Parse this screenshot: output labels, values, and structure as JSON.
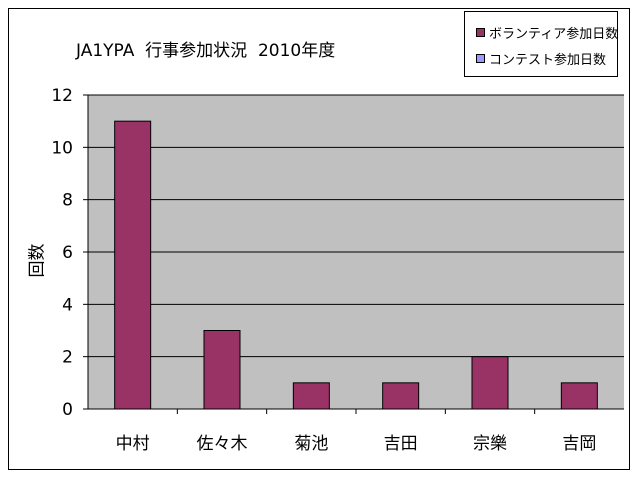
{
  "chart_data": {
    "type": "bar",
    "title": "JA1YPA  行事参加状況  2010年度",
    "xlabel": "",
    "ylabel": "回数",
    "categories": [
      "中村",
      "佐々木",
      "菊池",
      "吉田",
      "宗樂",
      "吉岡"
    ],
    "series": [
      {
        "name": "ボランティア参加日数",
        "values": [
          11,
          3,
          1,
          1,
          2,
          1
        ],
        "color": "#993366"
      },
      {
        "name": "コンテスト参加日数",
        "values": [
          0,
          0,
          0,
          0,
          0,
          0
        ],
        "color": "#9999ff"
      }
    ],
    "ylim": [
      0,
      12
    ],
    "yticks": [
      0,
      2,
      4,
      6,
      8,
      10,
      12
    ],
    "grid": true,
    "legend_position": "top-right",
    "plot_background": "#c0c0c0"
  }
}
